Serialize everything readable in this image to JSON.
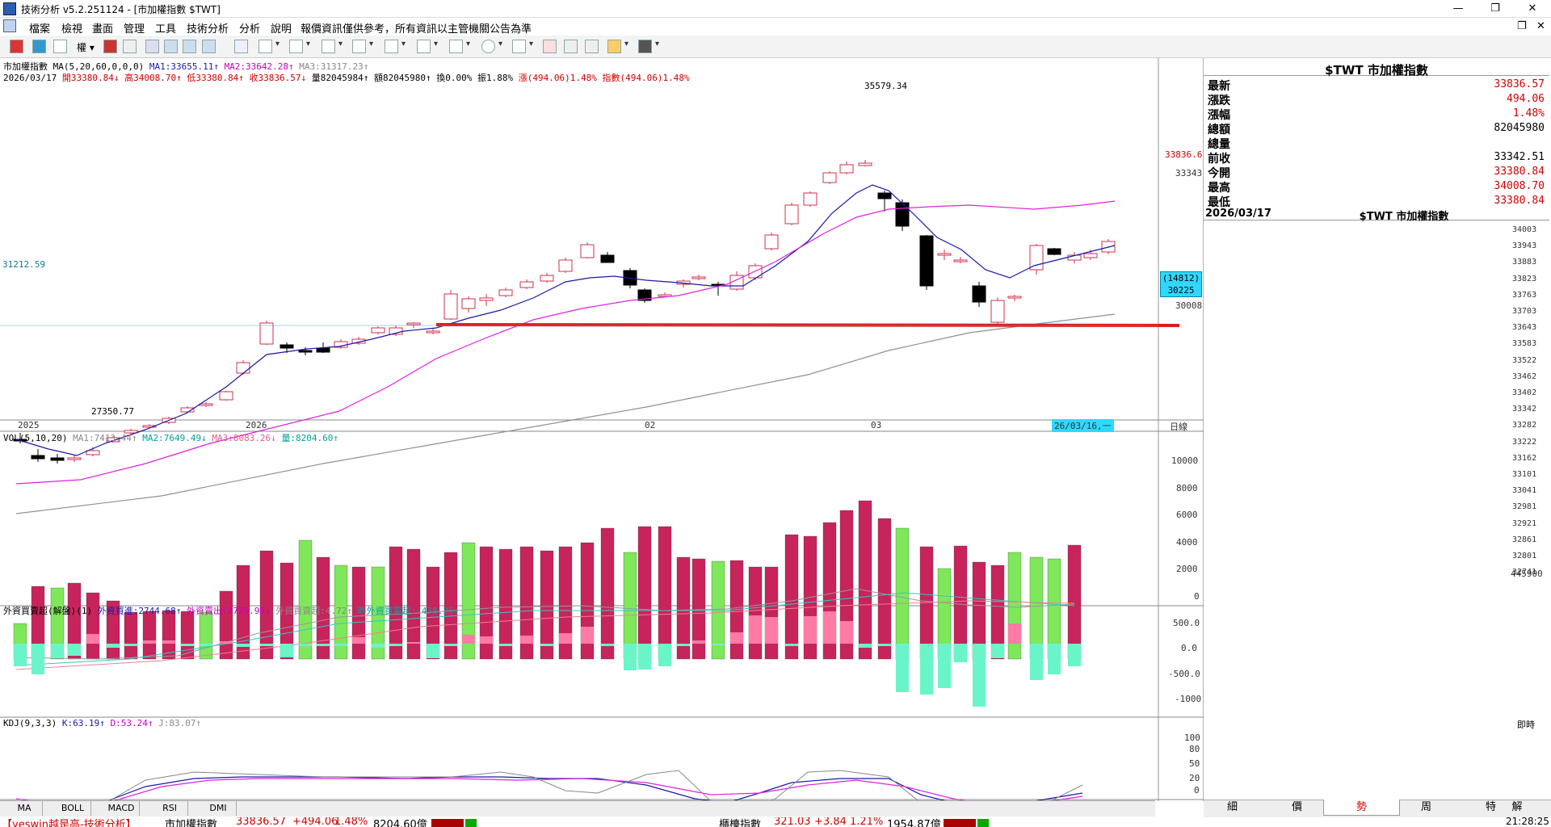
{
  "window": {
    "title": "技術分析 v5.2.251124 - [市加權指數 $TWT]",
    "controls": [
      "—",
      "❐",
      "✕"
    ]
  },
  "menu": [
    "檔案",
    "檢視",
    "畫面",
    "管理",
    "工具",
    "技術分析",
    "分析",
    "說明"
  ],
  "notice": "報價資訊僅供參考，所有資訊以主管機關公告為準",
  "main_chart": {
    "legend1": "市加權指數 MA(5,20,60,0,0,0)",
    "ma1": "MA1:33655.11↑",
    "ma2": "MA2:33642.28↑",
    "ma3": "MA3:31317.23↑",
    "legend2_date": "2026/03/17",
    "legend2_open": "開33380.84↓",
    "legend2_high": "高34008.70↑",
    "legend2_low": "低33380.84↑",
    "legend2_close": "收33836.57↓",
    "legend2_vol": "量82045984↑",
    "legend2_amt": "額82045980↑",
    "legend2_turn": "換0.00%",
    "legend2_amp": "振1.88%",
    "legend2_chg": "漲(494.06)1.48%",
    "legend2_idx": "指數(494.06)1.48%",
    "high_label": "35579.34",
    "low_label": "27350.77",
    "left_level": "31212.59",
    "price_tag": "33836.6",
    "axis_ticks": [
      "33343",
      "30008"
    ],
    "box_label_top": "(14812)",
    "box_label_bottom": "30225",
    "x_labels": [
      "2025",
      "2026",
      "02",
      "03"
    ],
    "date_tag": "26/03/16,一",
    "period_label": "日線"
  },
  "vol_chart": {
    "legend": "VOL(5,10,20)",
    "ma1": "MA1:7413.44↑",
    "ma2": "MA2:7649.49↓",
    "ma3": "MA3:8083.26↓",
    "cur": "量:8204.60↑",
    "ticks": [
      "10000",
      "8000",
      "6000",
      "4000",
      "2000",
      "0"
    ]
  },
  "foreign_chart": {
    "legend": "外資買賣超(解盤)(1)",
    "buy": "外資買進:2744.68↑",
    "sell": "外資賣出:2739.96↓",
    "net": "外資買賣超:4.72↑",
    "prev": "昨外資買賣超:-438.25↑",
    "ticks": [
      "500.0",
      "0.0",
      "-500.0",
      "-1000"
    ]
  },
  "kdj_chart": {
    "legend": "KDJ(9,3,3)",
    "k": "K:63.19↑",
    "d": "D:53.24↑",
    "j": "J:83.07↑",
    "ticks": [
      "100",
      "80",
      "50",
      "20",
      "0"
    ]
  },
  "bottom_tabs": [
    "MA",
    "BOLL",
    "MACD",
    "RSI",
    "DMI"
  ],
  "quote": {
    "title": "$TWT 市加權指數",
    "rows": [
      {
        "label": "最新",
        "value": "33836.57",
        "color": "#d00000"
      },
      {
        "label": "漲跌",
        "value": "494.06",
        "color": "#d00000"
      },
      {
        "label": "漲幅",
        "value": "1.48%",
        "color": "#d00000"
      },
      {
        "label": "總額",
        "value": "82045980",
        "color": "#000000"
      },
      {
        "label": "總量",
        "value": "",
        "color": "#000000"
      },
      {
        "label": "前收",
        "value": "33342.51",
        "color": "#000000"
      },
      {
        "label": "今開",
        "value": "33380.84",
        "color": "#d00000"
      },
      {
        "label": "最高",
        "value": "34008.70",
        "color": "#d00000"
      },
      {
        "label": "最低",
        "value": "33380.84",
        "color": "#d00000"
      }
    ]
  },
  "intraday": {
    "date": "2026/03/17",
    "title": "$TWT 市加權指數",
    "ticks": [
      "34003",
      "33943",
      "33883",
      "33823",
      "33763",
      "33703",
      "33643",
      "33583",
      "33522",
      "33462",
      "33402",
      "33342",
      "33282",
      "33222",
      "33162",
      "33101",
      "33041",
      "32981",
      "32921",
      "32861",
      "32801",
      "32741"
    ],
    "vol_tick": "445900",
    "time_label": "即時"
  },
  "right_tabs": [
    "細",
    "價",
    "勢",
    "周",
    "特",
    "解"
  ],
  "status": {
    "left": "【yeswin越是高-技術分析】",
    "idx_name": "市加權指數",
    "idx_val": "33836.57",
    "idx_chg": "+494.06",
    "idx_pct": "1.48%",
    "idx_amt": "8204.60億",
    "otc_name": "櫃檯指數",
    "otc_val": "321.03",
    "otc_chg": "+3.84",
    "otc_pct": "1.21%",
    "otc_amt": "1954.87億",
    "clock": "21:28:25"
  },
  "colors": {
    "up": "#d0304a",
    "down": "#000000",
    "vol_up": "#c8245c",
    "vol_down": "#7ee85a",
    "ma5": "#1a1aa6",
    "ma20": "#e020e0",
    "ma60": "#909090",
    "support": "#e01818"
  }
}
